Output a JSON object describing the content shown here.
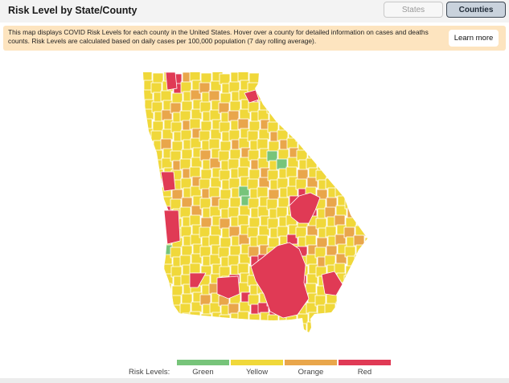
{
  "header": {
    "title": "Risk Level by State/County",
    "toggle": {
      "states_label": "States",
      "counties_label": "Counties",
      "selected": "Counties"
    }
  },
  "banner": {
    "text": "This map displays COVID Risk Levels for each county in the United States. Hover over a county for detailed information on cases and deaths counts. Risk Levels are calculated based on daily cases per 100,000 population (7 day rolling average).",
    "learn_more_label": "Learn more"
  },
  "map": {
    "region": "Georgia",
    "county_fills": {
      "green": "#77c47a",
      "yellow": "#f0d83a",
      "orange": "#e9a64b",
      "red": "#e03a55"
    },
    "border_color": "#ffffff"
  },
  "legend": {
    "label": "Risk Levels:",
    "items": [
      {
        "name": "Green",
        "color": "#77c47a"
      },
      {
        "name": "Yellow",
        "color": "#f0d83a"
      },
      {
        "name": "Orange",
        "color": "#e9a64b"
      },
      {
        "name": "Red",
        "color": "#e03a55"
      }
    ]
  }
}
